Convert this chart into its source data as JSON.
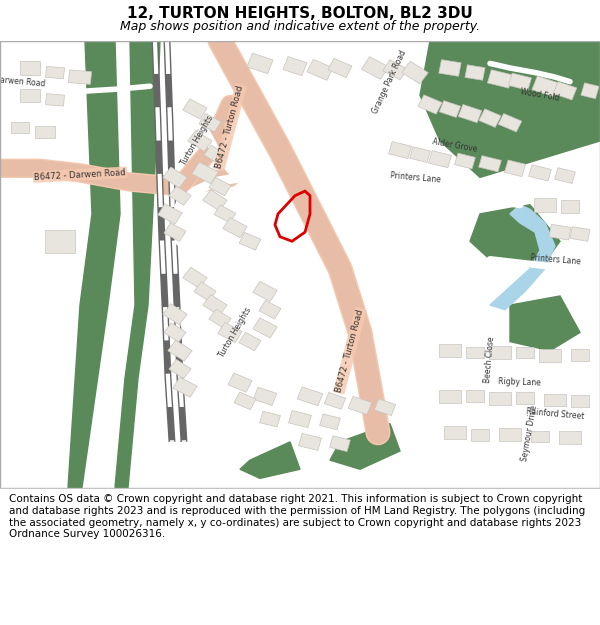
{
  "title": "12, TURTON HEIGHTS, BOLTON, BL2 3DU",
  "subtitle": "Map shows position and indicative extent of the property.",
  "footer": "Contains OS data © Crown copyright and database right 2021. This information is subject to Crown copyright and database rights 2023 and is reproduced with the permission of HM Land Registry. The polygons (including the associated geometry, namely x, y co-ordinates) are subject to Crown copyright and database rights 2023 Ordnance Survey 100026316.",
  "map_bg": "#f2efe9",
  "road_major_color": "#f5c9b0",
  "road_minor_color": "#ffffff",
  "building_color": "#e8e4de",
  "building_edge_color": "#c8c4be",
  "green_color": "#5a8a5a",
  "water_color": "#aad4e8",
  "plot_outline_color": "#dd0000",
  "title_fontsize": 11,
  "subtitle_fontsize": 9,
  "footer_fontsize": 7.5
}
